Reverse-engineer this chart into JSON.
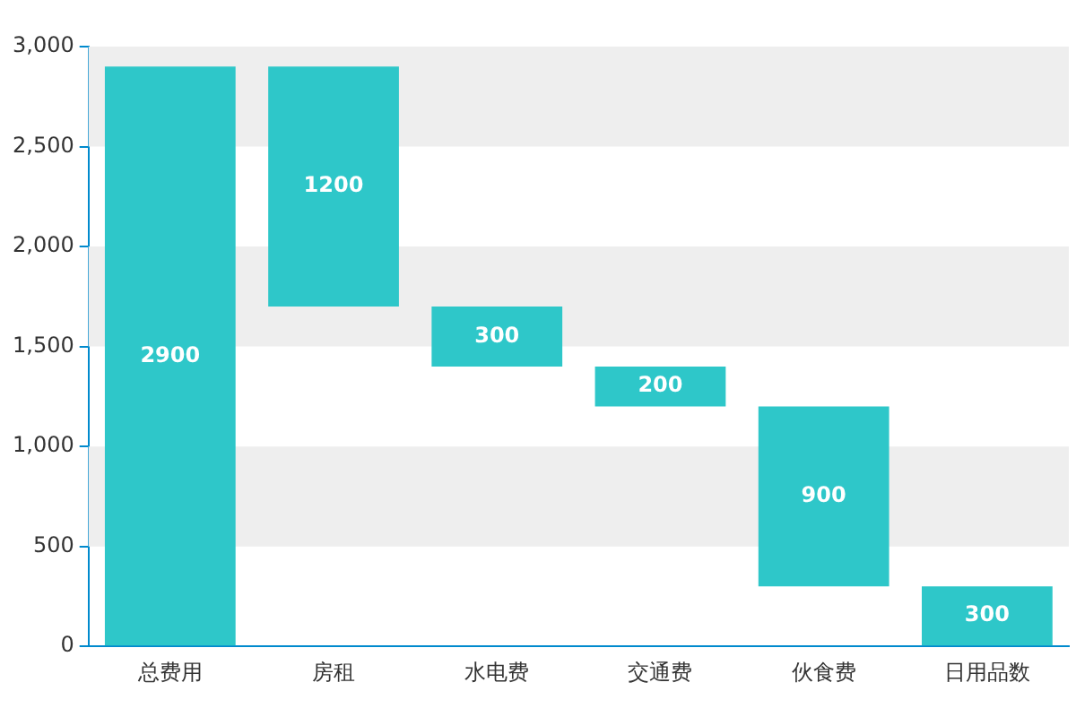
{
  "chart_data": {
    "type": "bar",
    "categories": [
      "总费用",
      "房租",
      "水电费",
      "交通费",
      "伙食费",
      "日用品数"
    ],
    "values": [
      2900,
      1200,
      300,
      200,
      900,
      300
    ],
    "base": [
      0,
      1700,
      1400,
      1200,
      300,
      0
    ],
    "color": "#2ec7c9",
    "ylim": [
      0,
      3000
    ],
    "yticks": [
      0,
      500,
      {
        "value": 1000,
        "label": "1,000"
      },
      {
        "value": 1500,
        "label": "1,500"
      },
      {
        "value": 2000,
        "label": "2,000"
      },
      {
        "value": 2500,
        "label": "2,500"
      },
      {
        "value": 3000,
        "label": "3,000"
      }
    ],
    "bands": [
      {
        "axis": "y",
        "from": 500,
        "to": 1000,
        "color": "#eeeeee"
      },
      {
        "axis": "y",
        "from": 1500,
        "to": 2000,
        "color": "#eeeeee"
      },
      {
        "axis": "y",
        "from": 2500,
        "to": 3000,
        "color": "#eeeeee"
      }
    ],
    "data_labels": true,
    "grid": false,
    "legend": false
  }
}
